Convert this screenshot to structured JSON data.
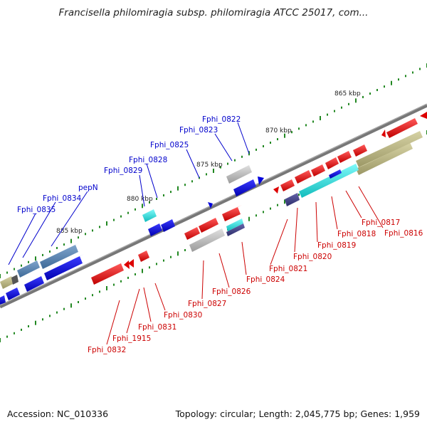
{
  "title": "Francisella philomiragia subsp. philomiragia ATCC 25017, com...",
  "footer": {
    "accession": "Accession: NC_010336",
    "summary": "Topology: circular; Length: 2,045,775 bp; Genes: 1,959"
  },
  "colors": {
    "forward_cds": "#dd0000",
    "reverse_cds": "#0000dd",
    "rrna": "#b8b482",
    "trna_light": "#22dddd",
    "misc": "#5577aa",
    "grey_feature": "#b0b0b0",
    "purple_feature": "#44448a",
    "tick_green": "#228822",
    "label_blue": "#0000cc",
    "label_red": "#cc0000"
  },
  "scale_ticks": [
    "865 kbp",
    "870 kbp",
    "875 kbp",
    "880 kbp",
    "885 kbp"
  ],
  "labels_top": [
    "Fphi_0822",
    "Fphi_0823",
    "Fphi_0825",
    "Fphi_0828",
    "Fphi_0829",
    "pepN",
    "Fphi_0834",
    "Fphi_0835"
  ],
  "labels_bottom": [
    "Fphi_0816",
    "Fphi_0817",
    "Fphi_0818",
    "Fphi_0819",
    "Fphi_0820",
    "Fphi_0821",
    "Fphi_0824",
    "Fphi_0826",
    "Fphi_0827",
    "Fphi_0830",
    "Fphi_0831",
    "Fphi_1915",
    "Fphi_0832"
  ]
}
